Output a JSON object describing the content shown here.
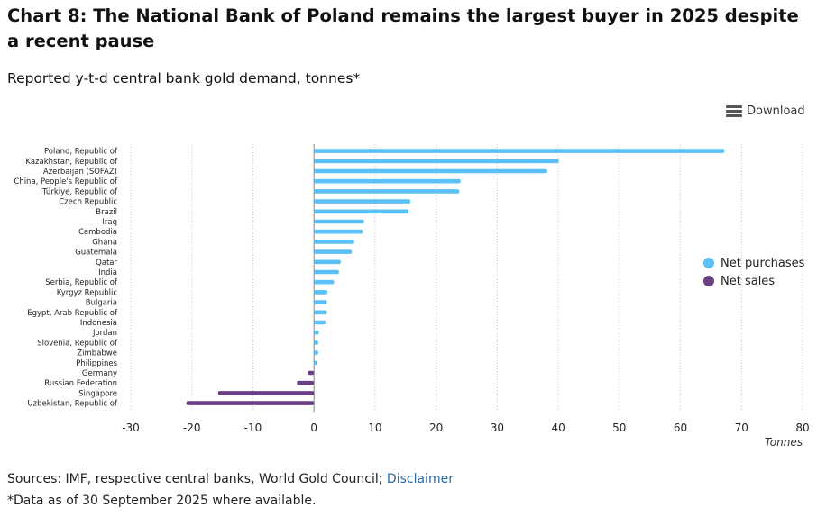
{
  "title": "Chart 8: The National Bank of Poland remains the largest buyer in 2025 despite a recent pause",
  "subtitle": "Reported y-t-d central bank gold demand, tonnes*",
  "download_label": "Download",
  "download_icon": "menu-icon",
  "colors": {
    "purchases": "#5bc0f5",
    "sales": "#6b3f86",
    "grid": "#c9c9c9"
  },
  "chart_data": {
    "type": "bar",
    "orientation": "horizontal",
    "categories": [
      "Poland, Republic of",
      "Kazakhstan, Republic of",
      "Azerbaijan (SOFAZ)",
      "China, People's Republic of",
      "Türkiye, Republic of",
      "Czech Republic",
      "Brazil",
      "Iraq",
      "Cambodia",
      "Ghana",
      "Guatemala",
      "Qatar",
      "India",
      "Serbia, Republic of",
      "Kyrgyz Republic",
      "Bulgaria",
      "Egypt, Arab Republic of",
      "Indonesia",
      "Jordan",
      "Slovenia, Republic of",
      "Zimbabwe",
      "Philippines",
      "Germany",
      "Russian Federation",
      "Singapore",
      "Uzbekistan, Republic of"
    ],
    "values": [
      67.2,
      40.1,
      38.2,
      24.0,
      23.8,
      15.8,
      15.5,
      8.2,
      8.0,
      6.6,
      6.2,
      4.4,
      4.1,
      3.3,
      2.2,
      2.1,
      2.1,
      1.9,
      0.8,
      0.7,
      0.7,
      0.6,
      -1.0,
      -2.8,
      -15.7,
      -20.9
    ],
    "series": [
      {
        "name": "Net purchases",
        "color": "#5bc0f5"
      },
      {
        "name": "Net sales",
        "color": "#6b3f86"
      }
    ],
    "xlim": [
      -30,
      80
    ],
    "xticks": [
      -30,
      -20,
      -10,
      0,
      10,
      20,
      30,
      40,
      50,
      60,
      70,
      80
    ],
    "xlabel": "Tonnes",
    "legend_position": "right",
    "grid": true
  },
  "legend": [
    {
      "label": "Net purchases",
      "color": "#5bc0f5"
    },
    {
      "label": "Net sales",
      "color": "#6b3f86"
    }
  ],
  "sources": {
    "text": "Sources: IMF, respective central banks, World Gold Council;",
    "link": "Disclaimer"
  },
  "footnote": "*Data as of 30 September 2025 where available."
}
